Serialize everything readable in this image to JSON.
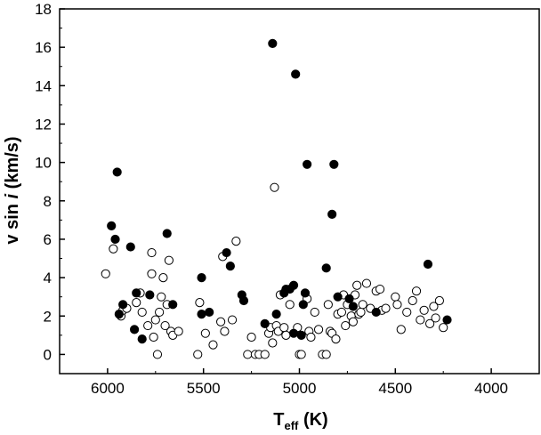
{
  "chart_data": {
    "type": "scatter",
    "title": "",
    "xlabel": {
      "main": "T",
      "subscript": "eff",
      "unit": " (K)"
    },
    "ylabel": {
      "before": "v sin ",
      "italic": "i",
      "after": " (km/s)"
    },
    "xlim": [
      6250,
      3750
    ],
    "ylim": [
      -1,
      18
    ],
    "x_reversed": true,
    "x_ticks": [
      6000,
      5500,
      5000,
      4500,
      4000
    ],
    "y_ticks": [
      0,
      2,
      4,
      6,
      8,
      10,
      12,
      14,
      16,
      18
    ],
    "grid": false,
    "legend": "none",
    "series": [
      {
        "marker": "filled-circle",
        "color": "#000000",
        "points": [
          [
            5980,
            6.7
          ],
          [
            5960,
            6.0
          ],
          [
            5950,
            9.5
          ],
          [
            5940,
            2.1
          ],
          [
            5920,
            2.6
          ],
          [
            5880,
            5.6
          ],
          [
            5860,
            1.3
          ],
          [
            5850,
            3.2
          ],
          [
            5820,
            0.8
          ],
          [
            5780,
            3.1
          ],
          [
            5690,
            6.3
          ],
          [
            5660,
            2.6
          ],
          [
            5510,
            4.0
          ],
          [
            5510,
            2.1
          ],
          [
            5470,
            2.2
          ],
          [
            5380,
            5.3
          ],
          [
            5360,
            4.6
          ],
          [
            5300,
            3.1
          ],
          [
            5290,
            2.8
          ],
          [
            5180,
            1.6
          ],
          [
            5140,
            16.2
          ],
          [
            5120,
            2.1
          ],
          [
            5080,
            3.2
          ],
          [
            5070,
            3.4
          ],
          [
            5050,
            3.4
          ],
          [
            5030,
            1.1
          ],
          [
            5030,
            3.6
          ],
          [
            5020,
            14.6
          ],
          [
            4990,
            1.0
          ],
          [
            4980,
            2.6
          ],
          [
            4970,
            3.2
          ],
          [
            4960,
            9.9
          ],
          [
            4860,
            4.5
          ],
          [
            4830,
            7.3
          ],
          [
            4820,
            9.9
          ],
          [
            4800,
            3.0
          ],
          [
            4740,
            2.9
          ],
          [
            4720,
            2.5
          ],
          [
            4600,
            2.2
          ],
          [
            4330,
            4.7
          ],
          [
            4230,
            1.8
          ]
        ]
      },
      {
        "marker": "open-circle",
        "color": "#000000",
        "points": [
          [
            6010,
            4.2
          ],
          [
            5970,
            5.5
          ],
          [
            5930,
            2.0
          ],
          [
            5920,
            2.3
          ],
          [
            5900,
            2.4
          ],
          [
            5850,
            2.7
          ],
          [
            5830,
            3.2
          ],
          [
            5820,
            2.2
          ],
          [
            5790,
            1.5
          ],
          [
            5770,
            5.3
          ],
          [
            5770,
            4.2
          ],
          [
            5760,
            0.9
          ],
          [
            5750,
            1.8
          ],
          [
            5740,
            0.0
          ],
          [
            5730,
            2.2
          ],
          [
            5720,
            3.0
          ],
          [
            5710,
            4.0
          ],
          [
            5700,
            1.5
          ],
          [
            5690,
            2.6
          ],
          [
            5680,
            4.9
          ],
          [
            5670,
            1.2
          ],
          [
            5660,
            1.0
          ],
          [
            5630,
            1.2
          ],
          [
            5530,
            0.0
          ],
          [
            5520,
            2.7
          ],
          [
            5490,
            1.1
          ],
          [
            5450,
            0.5
          ],
          [
            5410,
            1.7
          ],
          [
            5400,
            5.1
          ],
          [
            5390,
            1.2
          ],
          [
            5350,
            1.8
          ],
          [
            5330,
            5.9
          ],
          [
            5270,
            0.0
          ],
          [
            5250,
            0.9
          ],
          [
            5230,
            0.0
          ],
          [
            5210,
            0.0
          ],
          [
            5180,
            0.0
          ],
          [
            5160,
            1.1
          ],
          [
            5150,
            1.4
          ],
          [
            5140,
            0.6
          ],
          [
            5130,
            8.7
          ],
          [
            5120,
            1.5
          ],
          [
            5110,
            1.2
          ],
          [
            5100,
            3.1
          ],
          [
            5080,
            1.4
          ],
          [
            5070,
            1.0
          ],
          [
            5050,
            2.6
          ],
          [
            5010,
            1.4
          ],
          [
            5000,
            0.0
          ],
          [
            4990,
            0.0
          ],
          [
            4960,
            2.9
          ],
          [
            4950,
            1.2
          ],
          [
            4940,
            0.9
          ],
          [
            4920,
            2.2
          ],
          [
            4900,
            1.3
          ],
          [
            4880,
            0.0
          ],
          [
            4860,
            0.0
          ],
          [
            4850,
            2.6
          ],
          [
            4840,
            1.2
          ],
          [
            4830,
            1.1
          ],
          [
            4810,
            0.8
          ],
          [
            4800,
            2.1
          ],
          [
            4780,
            2.2
          ],
          [
            4770,
            3.1
          ],
          [
            4760,
            1.5
          ],
          [
            4750,
            2.6
          ],
          [
            4730,
            2.0
          ],
          [
            4720,
            1.7
          ],
          [
            4710,
            3.1
          ],
          [
            4700,
            3.6
          ],
          [
            4690,
            2.1
          ],
          [
            4680,
            2.2
          ],
          [
            4670,
            2.6
          ],
          [
            4650,
            3.7
          ],
          [
            4630,
            2.4
          ],
          [
            4600,
            3.3
          ],
          [
            4580,
            3.4
          ],
          [
            4570,
            2.3
          ],
          [
            4550,
            2.4
          ],
          [
            4500,
            3.0
          ],
          [
            4490,
            2.6
          ],
          [
            4470,
            1.3
          ],
          [
            4440,
            2.2
          ],
          [
            4410,
            2.8
          ],
          [
            4390,
            3.3
          ],
          [
            4370,
            1.8
          ],
          [
            4350,
            2.3
          ],
          [
            4320,
            1.6
          ],
          [
            4300,
            2.5
          ],
          [
            4290,
            1.9
          ],
          [
            4270,
            2.8
          ],
          [
            4250,
            1.4
          ]
        ]
      }
    ]
  }
}
